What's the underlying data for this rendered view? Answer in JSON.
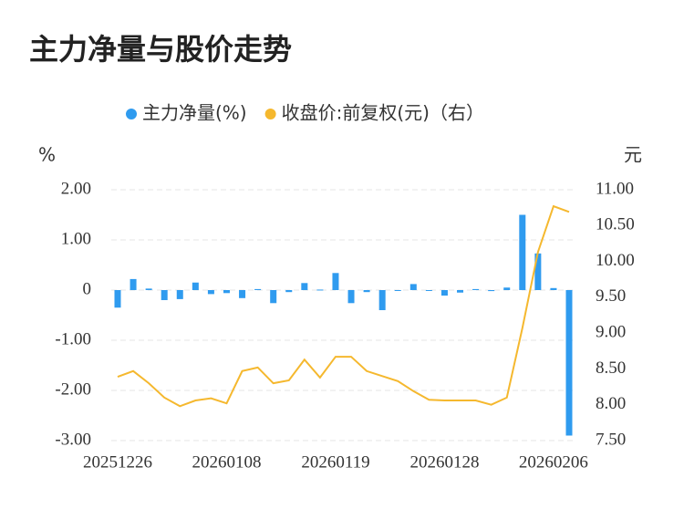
{
  "chart_data": {
    "type": "bar-line",
    "title": "主力净量与股价走势",
    "y_label": "%",
    "y2_label": "元",
    "categories": [
      "20251226",
      null,
      null,
      null,
      null,
      null,
      null,
      "20260108",
      null,
      null,
      null,
      null,
      null,
      null,
      "20260119",
      null,
      null,
      null,
      null,
      null,
      null,
      "20260128",
      null,
      null,
      null,
      null,
      null,
      null,
      "20260206",
      null
    ],
    "series": [
      {
        "name": "主力净量(%)",
        "type": "bar",
        "color": "#2f9bef",
        "values": [
          -0.35,
          0.22,
          0.03,
          -0.2,
          -0.18,
          0.15,
          -0.08,
          -0.06,
          -0.16,
          0.02,
          -0.26,
          -0.04,
          0.14,
          0.01,
          0.34,
          -0.26,
          -0.04,
          -0.4,
          -0.01,
          0.12,
          0,
          -0.11,
          -0.05,
          0.02,
          -0.02,
          0.05,
          1.5,
          0.73,
          0.04,
          -2.9
        ]
      },
      {
        "name": "收盘价:前复权(元)（右）",
        "type": "line",
        "axis": "y2",
        "color": "#f5b82e",
        "values": [
          8.39,
          8.47,
          8.3,
          8.1,
          7.98,
          8.06,
          8.09,
          8.02,
          8.47,
          8.52,
          8.3,
          8.34,
          8.63,
          8.38,
          8.67,
          8.67,
          8.47,
          8.4,
          8.33,
          8.19,
          8.07,
          8.06,
          8.06,
          8.06,
          8.0,
          8.1,
          9.07,
          10.13,
          10.77,
          10.69
        ]
      }
    ],
    "ylim": [
      -3,
      2
    ],
    "yticks": [
      {
        "value": -3,
        "label": "-3.00"
      },
      {
        "value": -2,
        "label": "-2.00"
      },
      {
        "value": -1,
        "label": "-1.00"
      },
      0,
      {
        "value": 1,
        "label": "1.00"
      },
      {
        "value": 2,
        "label": "2.00"
      }
    ],
    "y2lim": [
      7.5,
      11
    ],
    "y2ticks": [
      {
        "value": 7.5,
        "label": "7.50"
      },
      {
        "value": 8,
        "label": "8.00"
      },
      {
        "value": 8.5,
        "label": "8.50"
      },
      {
        "value": 9,
        "label": "9.00"
      },
      {
        "value": 9.5,
        "label": "9.50"
      },
      {
        "value": 10,
        "label": "10.00"
      },
      {
        "value": 10.5,
        "label": "10.50"
      },
      {
        "value": 11,
        "label": "11.00"
      }
    ],
    "grid": true
  }
}
